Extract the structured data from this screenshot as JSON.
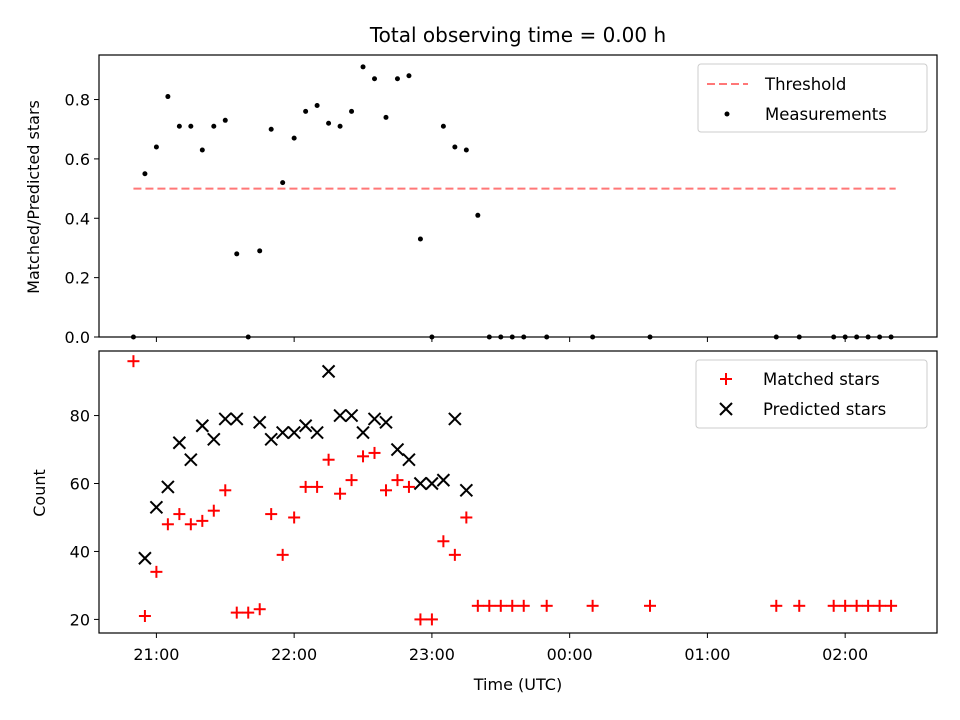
{
  "chart_data": [
    {
      "type": "scatter",
      "panel": "top",
      "title": "Total observing time = 0.00 h",
      "xlabel": "",
      "ylabel": "Matched/Predicted stars",
      "ylim": [
        0,
        0.95
      ],
      "yticks": [
        0.0,
        0.2,
        0.4,
        0.6,
        0.8
      ],
      "ytick_labels": [
        "0.0",
        "0.2",
        "0.4",
        "0.6",
        "0.8"
      ],
      "legend_position": "top-right",
      "threshold": {
        "name": "Threshold",
        "value": 0.5,
        "x_start": "20:50",
        "x_end": "02:22",
        "color": "#ff7777",
        "style": "dashed"
      },
      "series": [
        {
          "name": "Measurements",
          "color": "#000000",
          "marker": "dot",
          "x": [
            "20:50",
            "20:55",
            "21:00",
            "21:05",
            "21:10",
            "21:15",
            "21:20",
            "21:25",
            "21:30",
            "21:35",
            "21:40",
            "21:45",
            "21:50",
            "21:55",
            "22:00",
            "22:05",
            "22:10",
            "22:15",
            "22:20",
            "22:25",
            "22:30",
            "22:35",
            "22:40",
            "22:45",
            "22:50",
            "22:55",
            "23:00",
            "23:05",
            "23:10",
            "23:15",
            "23:20",
            "23:25",
            "23:30",
            "23:35",
            "23:40",
            "23:50",
            "00:10",
            "00:35",
            "01:30",
            "01:40",
            "01:55",
            "02:00",
            "02:05",
            "02:10",
            "02:15",
            "02:20"
          ],
          "y": [
            0.0,
            0.55,
            0.64,
            0.81,
            0.71,
            0.71,
            0.63,
            0.71,
            0.73,
            0.28,
            0.0,
            0.29,
            0.7,
            0.52,
            0.67,
            0.76,
            0.78,
            0.72,
            0.71,
            0.76,
            0.91,
            0.87,
            0.74,
            0.87,
            0.88,
            0.33,
            0.0,
            0.71,
            0.64,
            0.63,
            0.41,
            0.0,
            0.0,
            0.0,
            0.0,
            0.0,
            0.0,
            0.0,
            0.0,
            0.0,
            0.0,
            0.0,
            0.0,
            0.0,
            0.0,
            0.0
          ]
        }
      ]
    },
    {
      "type": "scatter",
      "panel": "bottom",
      "xlabel": "Time (UTC)",
      "ylabel": "Count",
      "ylim": [
        16,
        99
      ],
      "yticks": [
        20,
        40,
        60,
        80
      ],
      "ytick_labels": [
        "20",
        "40",
        "60",
        "80"
      ],
      "xlim": [
        "20:35",
        "02:40"
      ],
      "xticks": [
        "21:00",
        "22:00",
        "23:00",
        "00:00",
        "01:00",
        "02:00"
      ],
      "xtick_labels": [
        "21:00",
        "22:00",
        "23:00",
        "00:00",
        "01:00",
        "02:00"
      ],
      "legend_position": "top-right",
      "series": [
        {
          "name": "Matched stars",
          "color": "#ff0000",
          "marker": "plus",
          "x": [
            "20:50",
            "20:55",
            "21:00",
            "21:05",
            "21:10",
            "21:15",
            "21:20",
            "21:25",
            "21:30",
            "21:35",
            "21:40",
            "21:45",
            "21:50",
            "21:55",
            "22:00",
            "22:05",
            "22:10",
            "22:15",
            "22:20",
            "22:25",
            "22:30",
            "22:35",
            "22:40",
            "22:45",
            "22:50",
            "22:55",
            "23:00",
            "23:05",
            "23:10",
            "23:15",
            "23:20",
            "23:25",
            "23:30",
            "23:35",
            "23:40",
            "23:50",
            "00:10",
            "00:35",
            "01:30",
            "01:40",
            "01:55",
            "02:00",
            "02:05",
            "02:10",
            "02:15",
            "02:20"
          ],
          "y": [
            96,
            21,
            34,
            48,
            51,
            48,
            49,
            52,
            58,
            22,
            22,
            23,
            51,
            39,
            50,
            59,
            59,
            67,
            57,
            61,
            68,
            69,
            58,
            61,
            59,
            20,
            20,
            43,
            39,
            50,
            24,
            24,
            24,
            24,
            24,
            24,
            24,
            24,
            24,
            24,
            24,
            24,
            24,
            24,
            24,
            24
          ]
        },
        {
          "name": "Predicted stars",
          "color": "#000000",
          "marker": "x",
          "x": [
            "20:55",
            "21:00",
            "21:05",
            "21:10",
            "21:15",
            "21:20",
            "21:25",
            "21:30",
            "21:35",
            "21:45",
            "21:50",
            "21:55",
            "22:00",
            "22:05",
            "22:10",
            "22:15",
            "22:20",
            "22:25",
            "22:30",
            "22:35",
            "22:40",
            "22:45",
            "22:50",
            "22:55",
            "23:00",
            "23:05",
            "23:10",
            "23:15",
            "23:20"
          ],
          "y": [
            38,
            53,
            59,
            72,
            67,
            77,
            73,
            79,
            79,
            78,
            73,
            75,
            75,
            77,
            75,
            93,
            80,
            80,
            75,
            79,
            78,
            70,
            67,
            60,
            60,
            61,
            79,
            58,
            null
          ]
        }
      ]
    }
  ]
}
